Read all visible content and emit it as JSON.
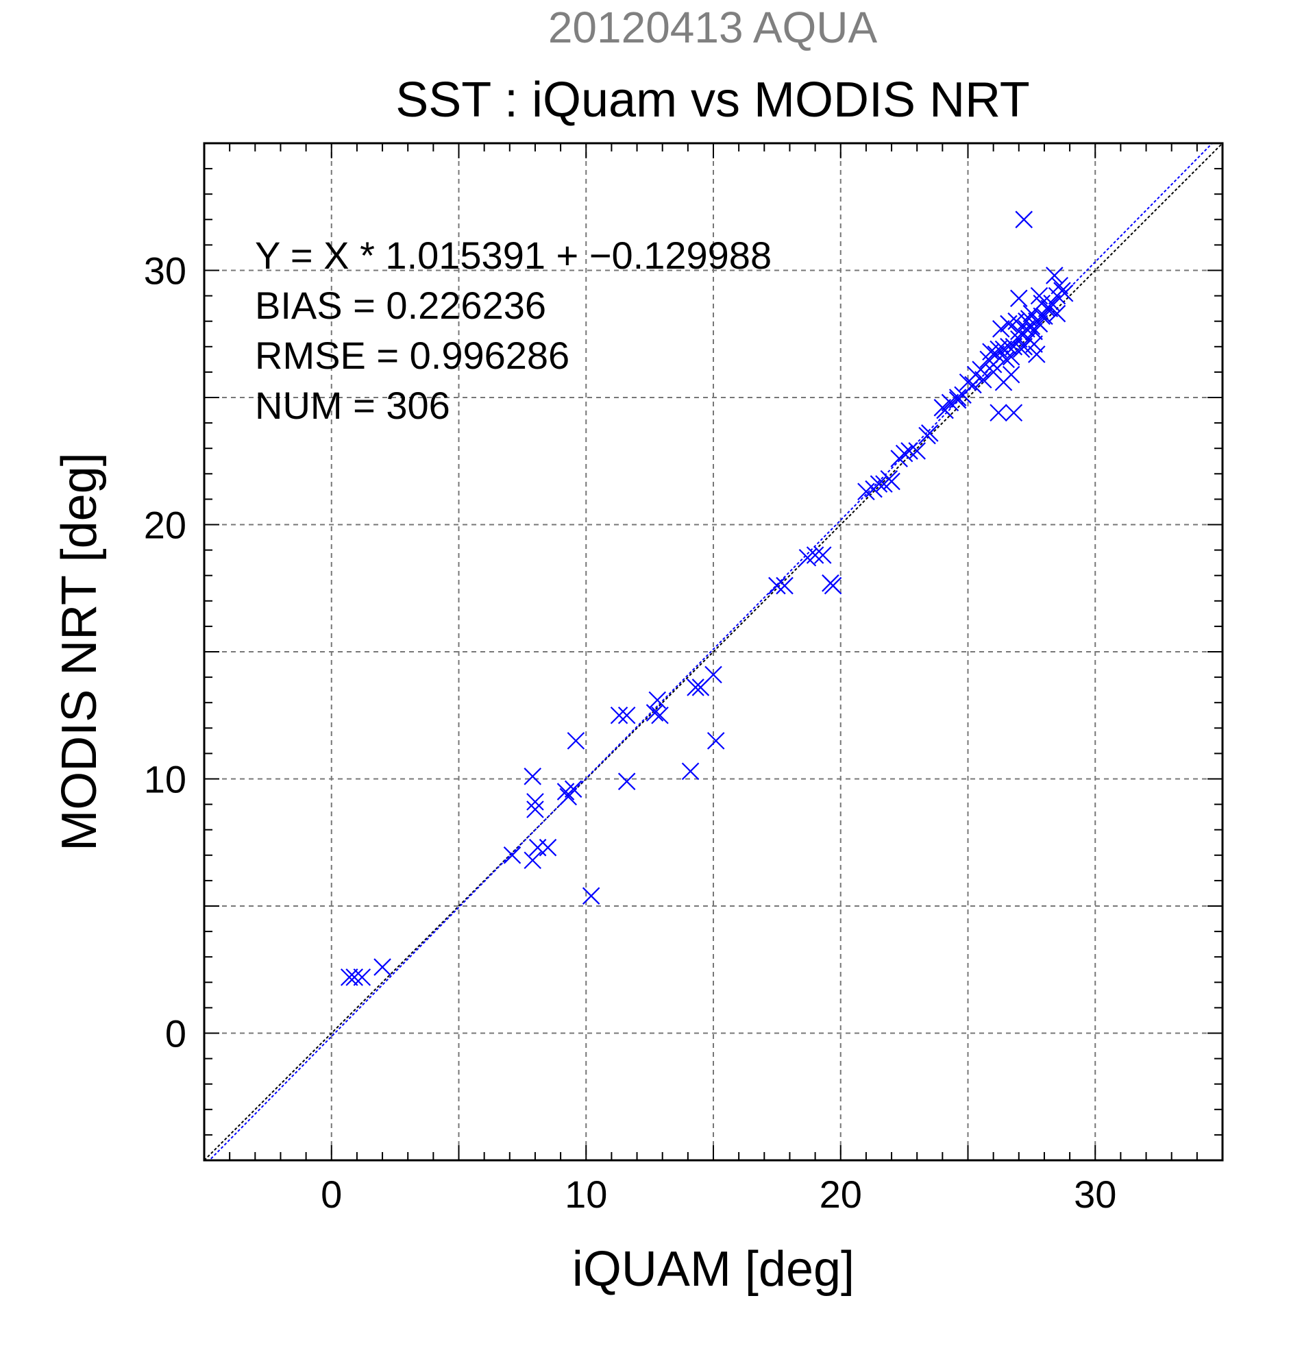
{
  "chart_data": {
    "type": "scatter",
    "suptitle": "20120413 AQUA",
    "title": "SST : iQuam vs MODIS NRT",
    "xlabel": "iQUAM [deg]",
    "ylabel": "MODIS NRT [deg]",
    "xlim": [
      -5,
      35
    ],
    "ylim": [
      -5,
      35
    ],
    "x_ticks": [
      0,
      10,
      20,
      30
    ],
    "y_ticks": [
      0,
      10,
      20,
      30
    ],
    "grid": true,
    "stats": [
      "Y = X * 1.015391 + −0.129988",
      "BIAS = 0.226236",
      "RMSE = 0.996286",
      "NUM = 306"
    ],
    "regression": {
      "slope": 1.015391,
      "intercept": -0.129988
    },
    "colors": {
      "points": "#0000ff",
      "regression_line": "#0000ff",
      "identity_line": "#000000",
      "suptitle": "#808080"
    },
    "series": [
      {
        "marker": "x",
        "x": [
          0.7,
          0.9,
          1.2,
          2.0,
          7.1,
          7.9,
          8.0,
          8.0,
          7.9,
          8.1,
          8.5,
          9.2,
          9.3,
          9.5,
          9.6,
          10.2,
          11.3,
          11.6,
          11.6,
          12.7,
          12.9,
          12.8,
          14.1,
          14.3,
          14.5,
          15.0,
          15.1,
          17.5,
          17.8,
          18.7,
          19.0,
          19.3,
          19.6,
          19.7,
          21.0,
          21.3,
          21.7,
          22.0,
          22.3,
          22.7,
          23.0,
          23.5,
          24.0,
          24.3,
          24.6,
          25.0,
          25.3,
          25.5,
          25.8,
          26.1,
          26.4,
          26.6,
          26.2,
          26.8,
          27.0,
          27.1,
          27.3,
          27.5,
          27.7,
          27.9,
          28.1,
          28.3,
          28.5,
          28.7,
          26.0,
          26.5,
          26.7,
          27.2,
          27.0,
          26.9,
          27.4,
          27.6,
          27.8,
          28.0,
          28.2,
          28.6,
          26.3,
          26.6,
          27.1,
          27.3,
          27.5,
          27.8,
          24.8,
          25.2,
          25.6,
          26.0,
          27.2,
          24.1,
          24.6,
          22.5,
          23.4,
          21.5,
          21.9,
          26.7,
          27.6,
          28.4,
          27.9,
          26.2,
          27.0,
          25.9,
          26.4,
          28.8,
          27.4,
          26.8,
          27.7,
          28.5
        ],
        "y": [
          2.2,
          2.2,
          2.2,
          2.6,
          7.0,
          10.1,
          9.1,
          8.8,
          6.8,
          7.3,
          7.3,
          9.5,
          9.3,
          9.6,
          11.5,
          5.4,
          12.5,
          12.5,
          9.9,
          12.6,
          12.5,
          13.1,
          10.3,
          13.6,
          13.6,
          14.1,
          11.5,
          17.6,
          17.6,
          18.7,
          18.8,
          18.8,
          17.7,
          17.6,
          21.3,
          21.4,
          21.6,
          21.7,
          22.6,
          22.9,
          22.9,
          23.6,
          24.6,
          24.8,
          25.0,
          25.6,
          25.9,
          26.1,
          26.5,
          26.7,
          26.9,
          27.0,
          24.4,
          24.4,
          27.3,
          27.5,
          27.7,
          27.8,
          28.0,
          28.2,
          28.5,
          28.7,
          29.0,
          29.2,
          26.3,
          26.5,
          26.6,
          27.0,
          28.9,
          28.0,
          27.3,
          27.6,
          27.9,
          28.2,
          28.5,
          29.4,
          27.7,
          27.9,
          26.9,
          28.0,
          28.3,
          29.0,
          25.1,
          25.5,
          25.7,
          26.0,
          32.0,
          24.5,
          24.9,
          22.8,
          23.5,
          21.6,
          21.8,
          25.9,
          27.1,
          29.8,
          28.7,
          26.9,
          27.6,
          26.8,
          25.6,
          29.1,
          28.1,
          27.0,
          26.7,
          28.3
        ]
      }
    ]
  }
}
